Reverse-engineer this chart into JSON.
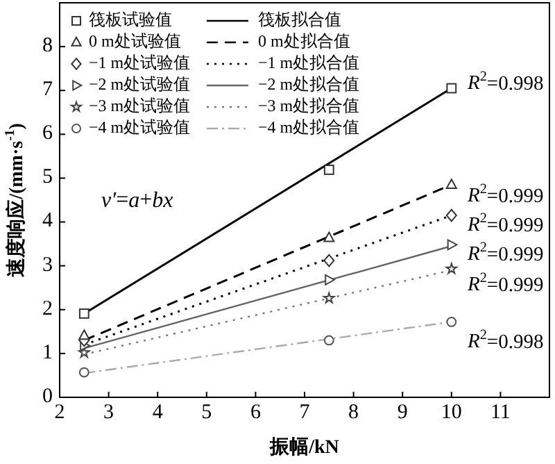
{
  "chart_data": {
    "type": "scatter",
    "xlabel": "振幅/kN",
    "ylabel": "速度响应/(mm·s$^{-1}$)",
    "xlim": [
      2,
      12
    ],
    "ylim": [
      0,
      9
    ],
    "xticks": [
      2,
      3,
      4,
      5,
      6,
      7,
      8,
      9,
      10,
      11
    ],
    "yticks": [
      0,
      1,
      2,
      3,
      4,
      5,
      6,
      7,
      8
    ],
    "legend": "top left",
    "grid": false,
    "series": [
      {
        "name": "筏板试验值",
        "marker": "square",
        "color": "#333333",
        "x": [
          2.5,
          7.5,
          10
        ],
        "values": [
          1.91,
          5.19,
          7.05
        ]
      },
      {
        "name": "筏板拟合值",
        "type": "line",
        "line_style": "solid",
        "color": "#000000",
        "x": [
          2.5,
          10
        ],
        "values": [
          1.91,
          7.05
        ]
      },
      {
        "name": "0 m处试验值",
        "marker": "triangle",
        "color": "#333333",
        "x": [
          2.5,
          7.5,
          10
        ],
        "values": [
          1.41,
          3.64,
          4.85
        ]
      },
      {
        "name": "0 m处拟合值",
        "type": "line",
        "line_style": "dashed",
        "color": "#000000",
        "x": [
          2.5,
          10
        ],
        "values": [
          1.3,
          4.85
        ]
      },
      {
        "name": "−1 m处试验值",
        "marker": "diamond",
        "color": "#333333",
        "x": [
          2.5,
          7.5,
          10
        ],
        "values": [
          1.3,
          3.12,
          4.15
        ]
      },
      {
        "name": "−1 m处拟合值",
        "type": "line",
        "line_style": "dotted",
        "color": "#000000",
        "x": [
          2.5,
          10
        ],
        "values": [
          1.2,
          4.15
        ]
      },
      {
        "name": "−2 m处试验值",
        "marker": "triangle-right",
        "color": "#444444",
        "x": [
          2.5,
          7.5,
          10
        ],
        "values": [
          1.18,
          2.68,
          3.48
        ]
      },
      {
        "name": "−2 m处拟合值",
        "type": "line",
        "line_style": "solid",
        "color": "#666666",
        "x": [
          2.5,
          10
        ],
        "values": [
          1.12,
          3.45
        ]
      },
      {
        "name": "−3 m处试验值",
        "marker": "star",
        "color": "#444444",
        "x": [
          2.5,
          7.5,
          10
        ],
        "values": [
          1.02,
          2.26,
          2.93
        ]
      },
      {
        "name": "−3 m处拟合值",
        "type": "line",
        "line_style": "dotted",
        "color": "#777777",
        "x": [
          2.5,
          10
        ],
        "values": [
          0.98,
          2.9
        ]
      },
      {
        "name": "−4 m处试验值",
        "marker": "circle",
        "color": "#555555",
        "x": [
          2.5,
          7.5,
          10
        ],
        "values": [
          0.57,
          1.3,
          1.72
        ]
      },
      {
        "name": "−4 m处拟合值",
        "type": "line",
        "line_style": "dashdot",
        "color": "#aaaaaa",
        "x": [
          2.5,
          10
        ],
        "values": [
          0.55,
          1.72
        ]
      }
    ],
    "annotations": [
      "*v′*=*a*+*bx*",
      "*R*$^{2}$=0.998",
      "*R*$^{2}$=0.999",
      "*R*$^{2}$=0.999",
      "*R*$^{2}$=0.999",
      "*R*$^{2}$=0.999",
      "*R*$^{2}$=0.998"
    ]
  }
}
